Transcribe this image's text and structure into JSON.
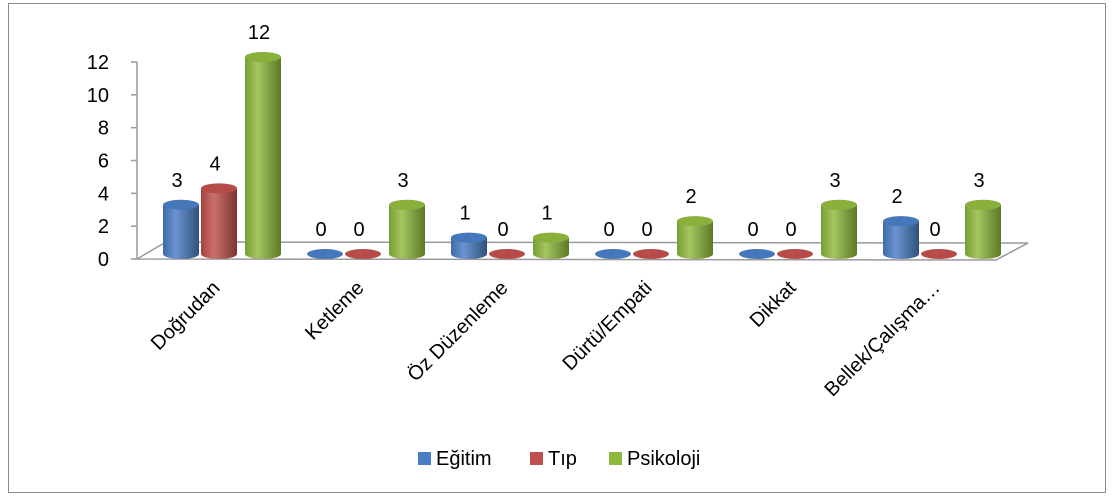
{
  "chart_data": {
    "type": "bar",
    "style": "3d-cylinder",
    "categories": [
      "Doğrudan",
      "Ketleme",
      "Öz Düzenleme",
      "Dürtü/Empati",
      "Dikkat",
      "Bellek/Çalışma…"
    ],
    "series": [
      {
        "name": "Eğitim",
        "color": "#4a7dc4",
        "values": [
          3,
          0,
          1,
          0,
          0,
          2
        ]
      },
      {
        "name": "Tıp",
        "color": "#c0504d",
        "values": [
          4,
          0,
          0,
          0,
          0,
          0
        ]
      },
      {
        "name": "Psikoloji",
        "color": "#8fb93e",
        "values": [
          12,
          3,
          1,
          2,
          3,
          3
        ]
      }
    ],
    "yticks": [
      "0",
      "2",
      "4",
      "6",
      "8",
      "10",
      "12"
    ],
    "ylim": [
      0,
      12
    ],
    "grid": false,
    "data_labels": true,
    "legend_position": "bottom"
  }
}
